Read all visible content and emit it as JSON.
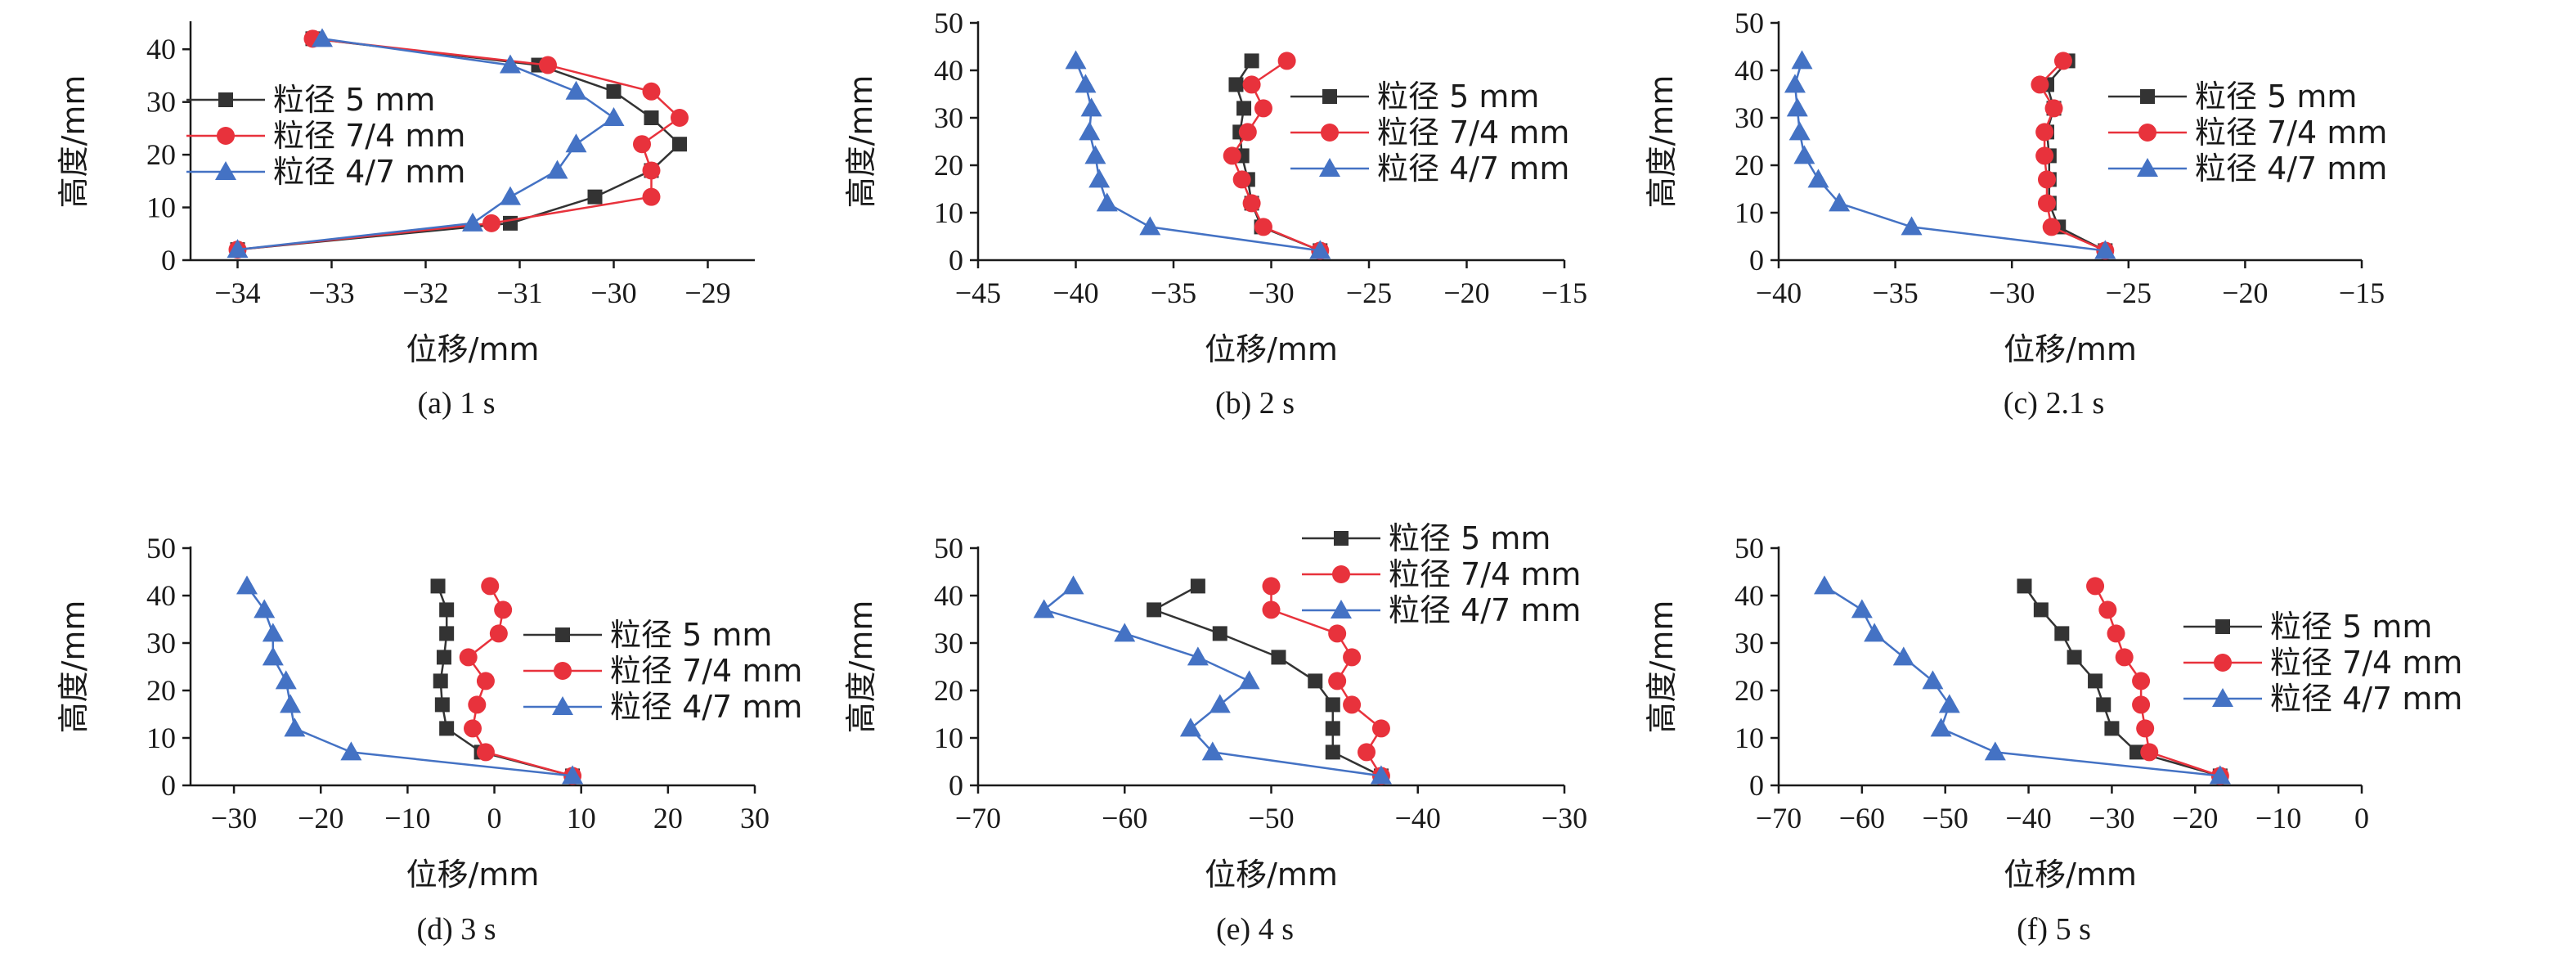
{
  "series_names": [
    "粒径 5 mm",
    "粒径 7/4 mm",
    "粒径 4/7 mm"
  ],
  "colors": {
    "s5": "#333333",
    "s74": "#e8323c",
    "s47": "#4472c4"
  },
  "chart_data": [
    {
      "type": "line",
      "caption": "(a) 1 s",
      "xlabel": "位移/mm",
      "ylabel": "高度/mm",
      "xlim": [
        -34.5,
        -28.5
      ],
      "xticks": [
        -34,
        -33,
        -32,
        -31,
        -30,
        -29
      ],
      "ylim": [
        0,
        45
      ],
      "yticks": [
        0,
        10,
        20,
        30,
        40
      ],
      "legend": "left",
      "grid": false,
      "series": [
        {
          "name": "粒径 5 mm",
          "x": [
            -34.0,
            -31.1,
            -30.2,
            -29.6,
            -29.3,
            -29.6,
            -30.0,
            -30.8,
            -33.2
          ],
          "y": [
            2,
            7,
            12,
            17,
            22,
            27,
            32,
            37,
            42
          ]
        },
        {
          "name": "粒径 7/4 mm",
          "x": [
            -34.0,
            -31.3,
            -29.6,
            -29.6,
            -29.7,
            -29.3,
            -29.6,
            -30.7,
            -33.2
          ],
          "y": [
            2,
            7,
            12,
            17,
            22,
            27,
            32,
            37,
            42
          ]
        },
        {
          "name": "粒径 4/7 mm",
          "x": [
            -34.0,
            -31.5,
            -31.1,
            -30.6,
            -30.4,
            -30.0,
            -30.4,
            -31.1,
            -33.1
          ],
          "y": [
            2,
            7,
            12,
            17,
            22,
            27,
            32,
            37,
            42
          ]
        }
      ]
    },
    {
      "type": "line",
      "caption": "(b) 2 s",
      "xlabel": "位移/mm",
      "ylabel": "高度/mm",
      "xlim": [
        -45,
        -15
      ],
      "xticks": [
        -45,
        -40,
        -35,
        -30,
        -25,
        -20,
        -15
      ],
      "ylim": [
        0,
        50
      ],
      "yticks": [
        0,
        10,
        20,
        30,
        40,
        50
      ],
      "legend": "right",
      "grid": false,
      "series": [
        {
          "name": "粒径 5 mm",
          "x": [
            -27.5,
            -30.5,
            -31.0,
            -31.2,
            -31.5,
            -31.6,
            -31.4,
            -31.8,
            -31.0
          ],
          "y": [
            2,
            7,
            12,
            17,
            22,
            27,
            32,
            37,
            42
          ]
        },
        {
          "name": "粒径 7/4 mm",
          "x": [
            -27.5,
            -30.4,
            -31.0,
            -31.5,
            -32.0,
            -31.2,
            -30.4,
            -31.0,
            -29.2
          ],
          "y": [
            2,
            7,
            12,
            17,
            22,
            27,
            32,
            37,
            42
          ]
        },
        {
          "name": "粒径 4/7 mm",
          "x": [
            -27.5,
            -36.2,
            -38.4,
            -38.8,
            -39.0,
            -39.3,
            -39.2,
            -39.5,
            -40.0
          ],
          "y": [
            2,
            7,
            12,
            17,
            22,
            27,
            32,
            37,
            42
          ]
        }
      ]
    },
    {
      "type": "line",
      "caption": "(c) 2.1 s",
      "xlabel": "位移/mm",
      "ylabel": "高度/mm",
      "xlim": [
        -40,
        -15
      ],
      "xticks": [
        -40,
        -35,
        -30,
        -25,
        -20,
        -15
      ],
      "ylim": [
        0,
        50
      ],
      "yticks": [
        0,
        10,
        20,
        30,
        40,
        50
      ],
      "legend": "right",
      "grid": false,
      "series": [
        {
          "name": "粒径 5 mm",
          "x": [
            -26.0,
            -28.0,
            -28.4,
            -28.4,
            -28.4,
            -28.5,
            -28.2,
            -28.5,
            -27.6
          ],
          "y": [
            2,
            7,
            12,
            17,
            22,
            27,
            32,
            37,
            42
          ]
        },
        {
          "name": "粒径 7/4 mm",
          "x": [
            -26.0,
            -28.3,
            -28.5,
            -28.5,
            -28.6,
            -28.6,
            -28.2,
            -28.8,
            -27.8
          ],
          "y": [
            2,
            7,
            12,
            17,
            22,
            27,
            32,
            37,
            42
          ]
        },
        {
          "name": "粒径 4/7 mm",
          "x": [
            -26.0,
            -34.3,
            -37.4,
            -38.3,
            -38.9,
            -39.1,
            -39.2,
            -39.3,
            -39.0
          ],
          "y": [
            2,
            7,
            12,
            17,
            22,
            27,
            32,
            37,
            42
          ]
        }
      ]
    },
    {
      "type": "line",
      "caption": "(d) 3 s",
      "xlabel": "位移/mm",
      "ylabel": "高度/mm",
      "xlim": [
        -35,
        30
      ],
      "xticks": [
        -30,
        -20,
        -10,
        0,
        10,
        20,
        30
      ],
      "ylim": [
        0,
        50
      ],
      "yticks": [
        0,
        10,
        20,
        30,
        40,
        50
      ],
      "legend": "right",
      "grid": false,
      "series": [
        {
          "name": "粒径 5 mm",
          "x": [
            9.0,
            -1.5,
            -5.5,
            -6.0,
            -6.2,
            -5.8,
            -5.5,
            -5.5,
            -6.5
          ],
          "y": [
            2,
            7,
            12,
            17,
            22,
            27,
            32,
            37,
            42
          ]
        },
        {
          "name": "粒径 7/4 mm",
          "x": [
            9.0,
            -1.0,
            -2.5,
            -2.0,
            -1.0,
            -3.0,
            0.5,
            1.0,
            -0.5
          ],
          "y": [
            2,
            7,
            12,
            17,
            22,
            27,
            32,
            37,
            42
          ]
        },
        {
          "name": "粒径 4/7 mm",
          "x": [
            9.0,
            -16.5,
            -23.0,
            -23.5,
            -24.0,
            -25.5,
            -25.5,
            -26.5,
            -28.5
          ],
          "y": [
            2,
            7,
            12,
            17,
            22,
            27,
            32,
            37,
            42
          ]
        }
      ]
    },
    {
      "type": "line",
      "caption": "(e) 4 s",
      "xlabel": "位移/mm",
      "ylabel": "高度/mm",
      "xlim": [
        -70,
        -30
      ],
      "xticks": [
        -70,
        -60,
        -50,
        -40,
        -30
      ],
      "ylim": [
        0,
        50
      ],
      "yticks": [
        0,
        10,
        20,
        30,
        40,
        50
      ],
      "legend": "top",
      "grid": false,
      "series": [
        {
          "name": "粒径 5 mm",
          "x": [
            -42.5,
            -45.8,
            -45.8,
            -45.8,
            -47.0,
            -49.5,
            -53.5,
            -58.0,
            -55.0
          ],
          "y": [
            2,
            7,
            12,
            17,
            22,
            27,
            32,
            37,
            42
          ]
        },
        {
          "name": "粒径 7/4 mm",
          "x": [
            -42.5,
            -43.5,
            -42.5,
            -44.5,
            -45.5,
            -44.5,
            -45.5,
            -50.0,
            -50.0
          ],
          "y": [
            2,
            7,
            12,
            17,
            22,
            27,
            32,
            37,
            42
          ]
        },
        {
          "name": "粒径 4/7 mm",
          "x": [
            -42.5,
            -54.0,
            -55.5,
            -53.5,
            -51.5,
            -55.0,
            -60.0,
            -65.5,
            -63.5
          ],
          "y": [
            2,
            7,
            12,
            17,
            22,
            27,
            32,
            37,
            42
          ]
        }
      ]
    },
    {
      "type": "line",
      "caption": "(f) 5 s",
      "xlabel": "位移/mm",
      "ylabel": "高度/mm",
      "xlim": [
        -70,
        0
      ],
      "xticks": [
        -70,
        -60,
        -50,
        -40,
        -30,
        -20,
        -10,
        0
      ],
      "ylim": [
        0,
        50
      ],
      "yticks": [
        0,
        10,
        20,
        30,
        40,
        50
      ],
      "legend": "right",
      "grid": false,
      "series": [
        {
          "name": "粒径 5 mm",
          "x": [
            -17.0,
            -27.0,
            -30.0,
            -31.0,
            -32.0,
            -34.5,
            -36.0,
            -38.5,
            -40.5
          ],
          "y": [
            2,
            7,
            12,
            17,
            22,
            27,
            32,
            37,
            42
          ]
        },
        {
          "name": "粒径 7/4 mm",
          "x": [
            -17.0,
            -25.5,
            -26.0,
            -26.5,
            -26.5,
            -28.5,
            -29.5,
            -30.5,
            -32.0
          ],
          "y": [
            2,
            7,
            12,
            17,
            22,
            27,
            32,
            37,
            42
          ]
        },
        {
          "name": "粒径 4/7 mm",
          "x": [
            -17.0,
            -44.0,
            -50.5,
            -49.5,
            -51.5,
            -55.0,
            -58.5,
            -60.0,
            -64.5
          ],
          "y": [
            2,
            7,
            12,
            17,
            22,
            27,
            32,
            37,
            42
          ]
        }
      ]
    }
  ]
}
